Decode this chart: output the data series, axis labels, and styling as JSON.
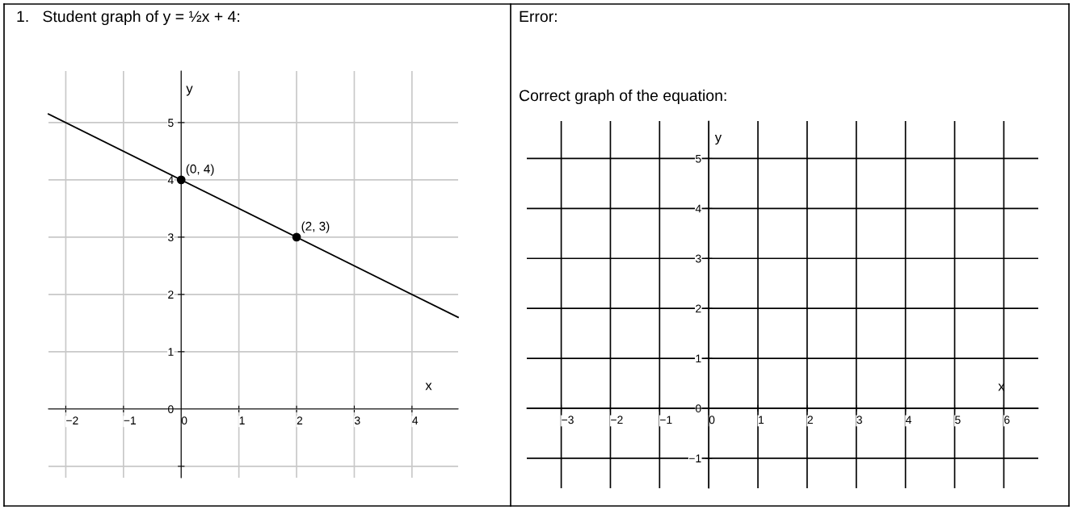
{
  "chart_data": [
    {
      "type": "line",
      "title": "1.   Student graph of y = ½x + 4:",
      "xlabel": "x",
      "ylabel": "y",
      "series": [
        {
          "color": "#000000",
          "x": [
            -2.3,
            4.8
          ],
          "values": [
            5.15,
            1.6
          ],
          "marker": "none"
        },
        {
          "type": "scatter",
          "color": "#000000",
          "x": [
            0,
            2
          ],
          "values": [
            4,
            3
          ],
          "marker": "circle"
        }
      ],
      "annotations": [
        {
          "text": "(0, 4)",
          "x": 0,
          "y": 4
        },
        {
          "text": "(2, 3)",
          "x": 2,
          "y": 3
        }
      ],
      "xlim": [
        -2.3,
        4.8
      ],
      "ylim": [
        -1.2,
        5.9
      ],
      "xticks": [
        {
          "value": -2,
          "label": "−2"
        },
        {
          "value": -1,
          "label": "−1"
        },
        0,
        1,
        2,
        3,
        4
      ],
      "yticks": [
        {
          "value": -1,
          "label": null
        },
        0,
        1,
        2,
        3,
        4,
        5
      ],
      "grid": true
    },
    {
      "type": "line",
      "title": "Correct graph of the equation:",
      "annotations": [
        "Error:"
      ],
      "xlabel": "x",
      "ylabel": "y",
      "xlim": [
        -3.7,
        6.7
      ],
      "ylim": [
        -1.6,
        5.75
      ],
      "xticks": [
        {
          "value": -3,
          "label": "−3"
        },
        {
          "value": -2,
          "label": "−2"
        },
        {
          "value": -1,
          "label": "−1"
        },
        0,
        1,
        2,
        3,
        4,
        5,
        6
      ],
      "yticks": [
        {
          "value": -1,
          "label": "−1"
        },
        0,
        1,
        2,
        3,
        4,
        5
      ],
      "grid": true
    }
  ]
}
